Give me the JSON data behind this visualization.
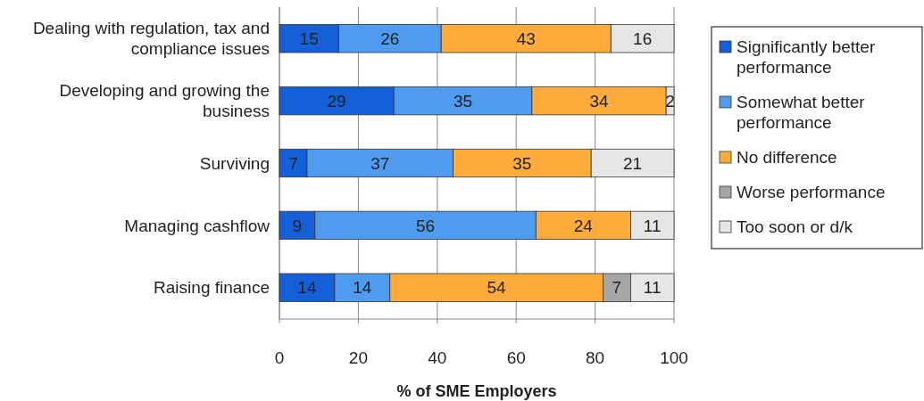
{
  "chart_data": {
    "type": "bar",
    "orientation": "horizontal",
    "stacked": true,
    "xlabel": "% of SME Employers",
    "categories": [
      "Dealing with regulation, tax and compliance issues",
      "Developing and growing the business",
      "Surviving",
      "Managing cashflow",
      "Raising finance"
    ],
    "series": [
      {
        "name": "Significantly better performance",
        "color": "#1560d8",
        "values": [
          15,
          29,
          7,
          9,
          14
        ]
      },
      {
        "name": "Somewhat better performance",
        "color": "#4f9bf0",
        "values": [
          26,
          35,
          37,
          56,
          14
        ]
      },
      {
        "name": "No difference",
        "color": "#ffac3c",
        "values": [
          43,
          34,
          35,
          24,
          54
        ]
      },
      {
        "name": "Worse performance",
        "color": "#a6a6a6",
        "values": [
          null,
          null,
          null,
          null,
          7
        ]
      },
      {
        "name": "Too soon or d/k",
        "color": "#e6e6e6",
        "values": [
          16,
          2,
          21,
          11,
          11
        ]
      }
    ],
    "xlim": [
      0,
      100
    ],
    "xticks": [
      0,
      20,
      40,
      60,
      80,
      100
    ],
    "grid": "x",
    "legend": "right",
    "data_labels": true
  }
}
